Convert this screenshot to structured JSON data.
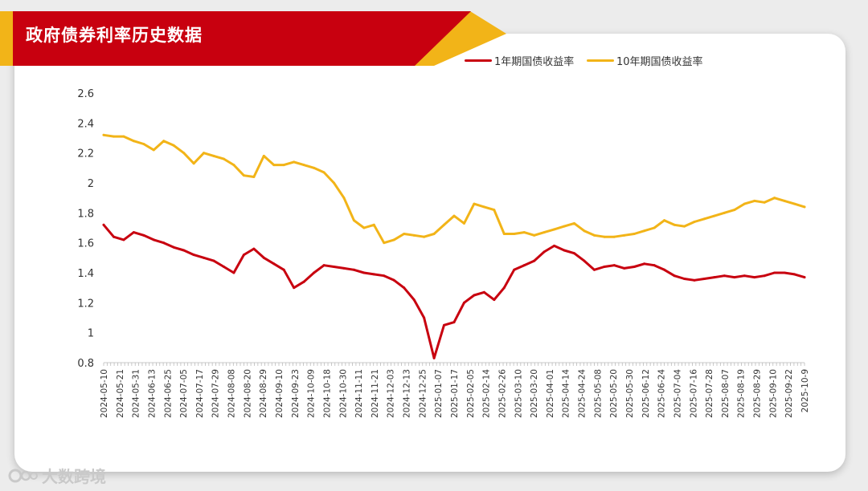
{
  "header": {
    "title": "政府债券利率历史数据"
  },
  "watermark": {
    "text": "大数跨境"
  },
  "colors": {
    "banner_red": "#c8000f",
    "banner_gold": "#f2b418",
    "series_1y": "#c8000f",
    "series_10y": "#f2b418"
  },
  "chart_data": {
    "type": "line",
    "title": "政府债券利率历史数据",
    "legend_position": "top-right",
    "grid": false,
    "xlabel": "",
    "ylabel": "",
    "ylim": [
      0.8,
      2.6
    ],
    "yticks": [
      "0.8",
      "1",
      "1.2",
      "1.4",
      "1.6",
      "1.8",
      "2",
      "2.2",
      "2.4",
      "2.6"
    ],
    "x_tick_labels": [
      "2024-05-10",
      "2024-05-21",
      "2024-05-31",
      "2024-06-13",
      "2024-06-25",
      "2024-07-05",
      "2024-07-17",
      "2024-07-29",
      "2024-08-08",
      "2024-08-20",
      "2024-08-29",
      "2024-09-10",
      "2024-09-23",
      "2024-10-09",
      "2024-10-18",
      "2024-10-30",
      "2024-11-11",
      "2024-11-21",
      "2024-12-03",
      "2024-12-13",
      "2024-12-25",
      "2025-01-07",
      "2025-01-17",
      "2025-02-05",
      "2025-02-14",
      "2025-02-26",
      "2025-03-10",
      "2025-03-20",
      "2025-04-01",
      "2025-04-14",
      "2025-04-24",
      "2025-05-08",
      "2025-05-20",
      "2025-05-30",
      "2025-06-12",
      "2025-06-24",
      "2025-07-04",
      "2025-07-16",
      "2025-07-28",
      "2025-08-07",
      "2025-08-19",
      "2025-08-29",
      "2025-09-10",
      "2025-09-22",
      "2025-10-9"
    ],
    "series": [
      {
        "name": "1年期国债收益率",
        "values": [
          1.72,
          1.64,
          1.62,
          1.67,
          1.65,
          1.62,
          1.6,
          1.57,
          1.55,
          1.52,
          1.5,
          1.48,
          1.44,
          1.4,
          1.52,
          1.56,
          1.5,
          1.46,
          1.42,
          1.3,
          1.34,
          1.4,
          1.45,
          1.44,
          1.43,
          1.42,
          1.4,
          1.39,
          1.38,
          1.35,
          1.3,
          1.22,
          1.1,
          0.83,
          1.05,
          1.07,
          1.2,
          1.25,
          1.27,
          1.22,
          1.3,
          1.42,
          1.45,
          1.48,
          1.54,
          1.58,
          1.55,
          1.53,
          1.48,
          1.42,
          1.44,
          1.45,
          1.43,
          1.44,
          1.46,
          1.45,
          1.42,
          1.38,
          1.36,
          1.35,
          1.36,
          1.37,
          1.38,
          1.37,
          1.38,
          1.37,
          1.38,
          1.4,
          1.4,
          1.39,
          1.37
        ]
      },
      {
        "name": "10年期国债收益率",
        "values": [
          2.32,
          2.31,
          2.31,
          2.28,
          2.26,
          2.22,
          2.28,
          2.25,
          2.2,
          2.13,
          2.2,
          2.18,
          2.16,
          2.12,
          2.05,
          2.04,
          2.18,
          2.12,
          2.12,
          2.14,
          2.12,
          2.1,
          2.07,
          2.0,
          1.9,
          1.75,
          1.7,
          1.72,
          1.6,
          1.62,
          1.66,
          1.65,
          1.64,
          1.66,
          1.72,
          1.78,
          1.73,
          1.86,
          1.84,
          1.82,
          1.66,
          1.66,
          1.67,
          1.65,
          1.67,
          1.69,
          1.71,
          1.73,
          1.68,
          1.65,
          1.64,
          1.64,
          1.65,
          1.66,
          1.68,
          1.7,
          1.75,
          1.72,
          1.71,
          1.74,
          1.76,
          1.78,
          1.8,
          1.82,
          1.86,
          1.88,
          1.87,
          1.9,
          1.88,
          1.86,
          1.84
        ]
      }
    ]
  }
}
